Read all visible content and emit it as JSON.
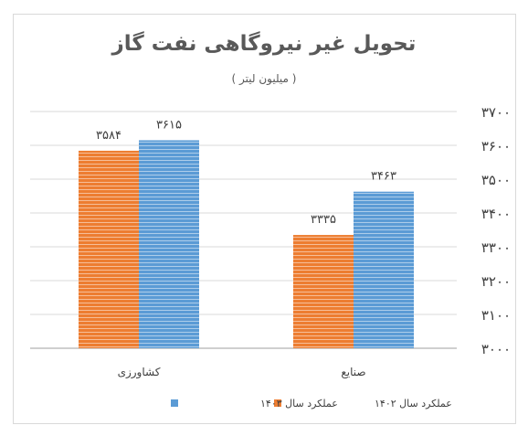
{
  "chart_data": {
    "type": "bar",
    "title": "تحویل غیر نیروگاهی نفت گاز",
    "subtitle": "( میلیون لیتر )",
    "categories": [
      "کشاورزی",
      "صنایع"
    ],
    "series": [
      {
        "name": "عملکرد سال ۱۴۰۲",
        "values": [
          3584,
          3335
        ],
        "value_labels": [
          "۳۵۸۴",
          "۳۳۳۵"
        ],
        "color": "#ED7D31"
      },
      {
        "name": "عملکرد سال ۱۴۰۳",
        "values": [
          3615,
          3463
        ],
        "value_labels": [
          "۳۶۱۵",
          "۳۴۶۳"
        ],
        "color": "#5B9BD5"
      }
    ],
    "ylim": [
      3000,
      3700
    ],
    "yticks": [
      3000,
      3100,
      3200,
      3300,
      3400,
      3500,
      3600,
      3700
    ],
    "ytick_labels": [
      "۳۰۰۰",
      "۳۱۰۰",
      "۳۲۰۰",
      "۳۳۰۰",
      "۳۴۰۰",
      "۳۵۰۰",
      "۳۶۰۰",
      "۳۷۰۰"
    ],
    "y_axis_side": "right",
    "grid": true,
    "legend_position": "bottom"
  }
}
